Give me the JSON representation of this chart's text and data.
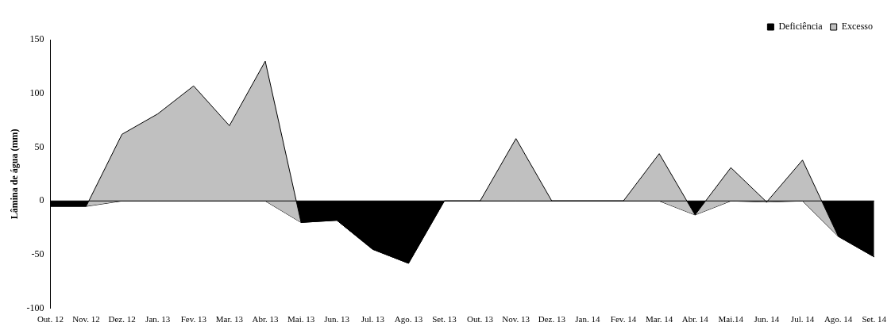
{
  "chart_data": {
    "type": "area",
    "ylabel": "Lâmina de água (mm)",
    "stacked": true,
    "legend": "top right",
    "categories": [
      "Out. 12",
      "Nov. 12",
      "Dez. 12",
      "Jan. 13",
      "Fev. 13",
      "Mar. 13",
      "Abr. 13",
      "Mai. 13",
      "Jun. 13",
      "Jul. 13",
      "Ago. 13",
      "Set. 13",
      "Out. 13",
      "Nov. 13",
      "Dez. 13",
      "Jan. 14",
      "Fev. 14",
      "Mar. 14",
      "Abr. 14",
      "Mai.14",
      "Jun. 14",
      "Jul. 14",
      "Ago. 14",
      "Set. 14"
    ],
    "series": [
      {
        "name": "Deficiência",
        "color": "#000000",
        "values": [
          -5,
          -5,
          0,
          0,
          0,
          0,
          0,
          -20,
          -18,
          -45,
          -58,
          0,
          0,
          0,
          0,
          0,
          0,
          0,
          -13,
          0,
          -1,
          0,
          -33,
          -52
        ]
      },
      {
        "name": "Excesso",
        "color": "#c0c0c0",
        "values": [
          0,
          0,
          62,
          81,
          107,
          70,
          130,
          0,
          0,
          0,
          0,
          0,
          0,
          58,
          0,
          0,
          0,
          44,
          0,
          31,
          0,
          38,
          0,
          0
        ]
      }
    ],
    "ylim": [
      -100,
      150
    ],
    "yticks": [
      -100,
      -50,
      0,
      50,
      100,
      150
    ]
  }
}
